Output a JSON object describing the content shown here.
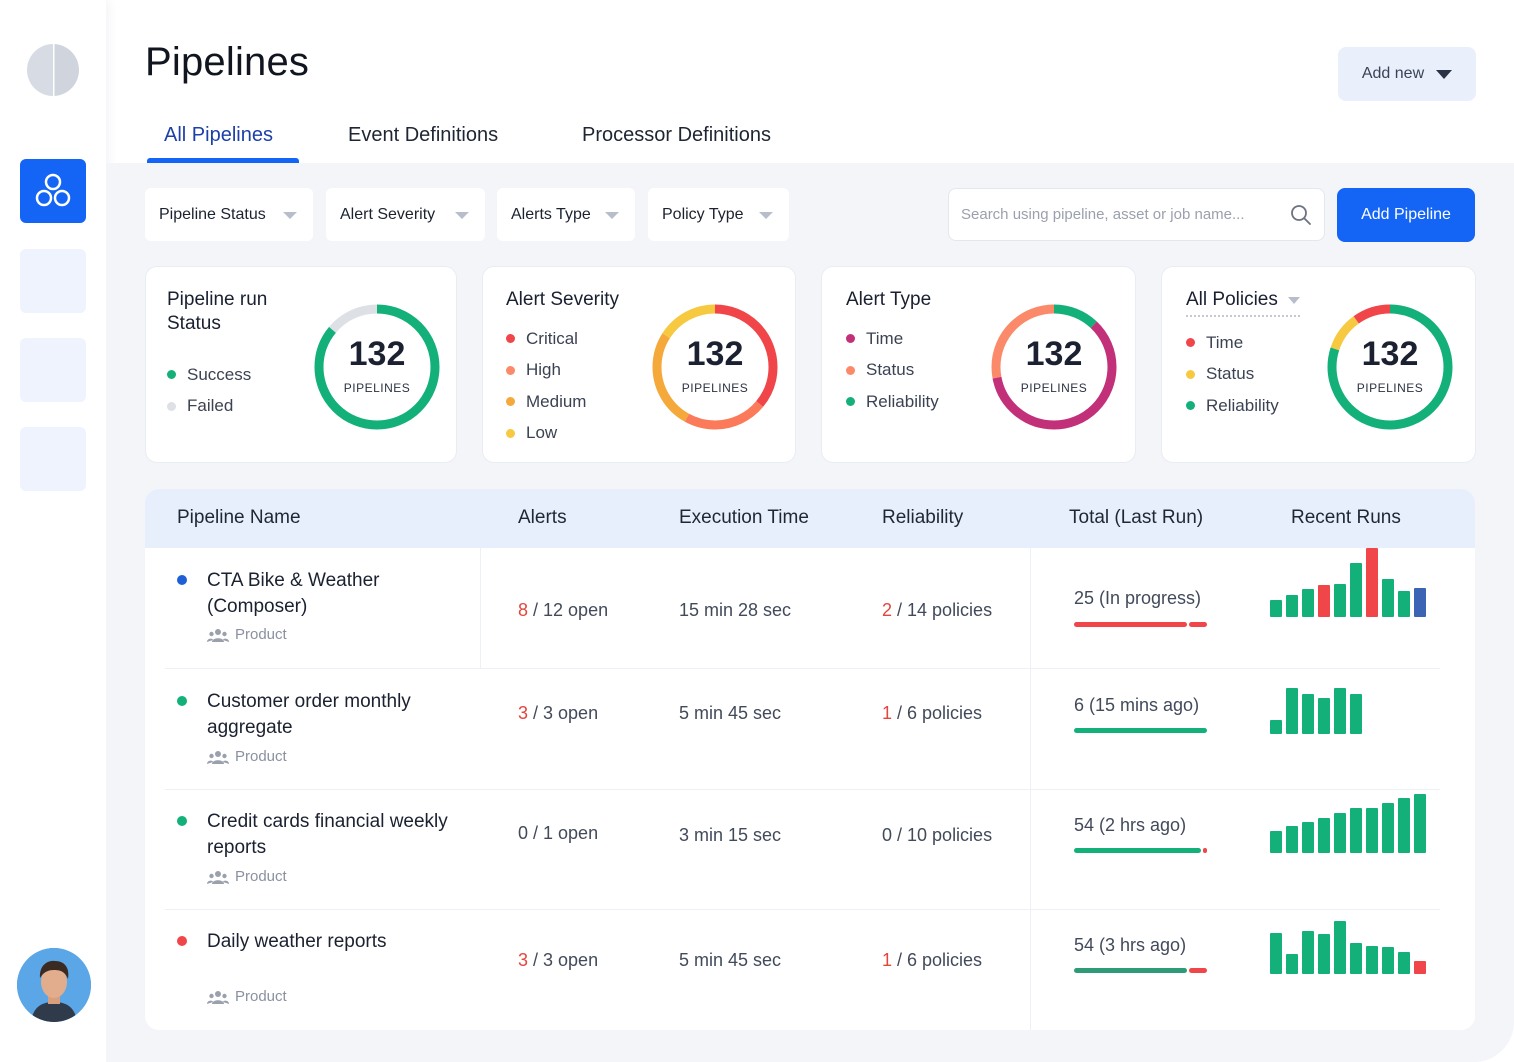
{
  "page": {
    "title": "Pipelines",
    "add_new_label": "Add new"
  },
  "tabs": [
    {
      "label": "All Pipelines",
      "active": true
    },
    {
      "label": "Event Definitions",
      "active": false
    },
    {
      "label": "Processor Definitions",
      "active": false
    }
  ],
  "filters": [
    "Pipeline Status",
    "Alert Severity",
    "Alerts Type",
    "Policy Type"
  ],
  "search": {
    "placeholder": "Search using pipeline, asset or job name..."
  },
  "add_pipeline_label": "Add Pipeline",
  "cards": [
    {
      "title": "Pipeline run Status",
      "value": "132",
      "unit": "PIPELINES",
      "legend": [
        {
          "label": "Success",
          "color": "#14b07a"
        },
        {
          "label": "Failed",
          "color": "#dde0e5"
        }
      ],
      "segments": [
        {
          "color": "#14b07a",
          "fraction": 0.86
        },
        {
          "color": "#dde0e5",
          "fraction": 0.14
        }
      ]
    },
    {
      "title": "Alert Severity",
      "value": "132",
      "unit": "PIPELINES",
      "legend": [
        {
          "label": "Critical",
          "color": "#f0464a"
        },
        {
          "label": "High",
          "color": "#fb8a6a"
        },
        {
          "label": "Medium",
          "color": "#f4a93a"
        },
        {
          "label": "Low",
          "color": "#f6c941"
        }
      ],
      "segments": [
        {
          "color": "#f0464a",
          "fraction": 0.36
        },
        {
          "color": "#fb7a5a",
          "fraction": 0.22
        },
        {
          "color": "#f4a93a",
          "fraction": 0.26
        },
        {
          "color": "#f6c941",
          "fraction": 0.16
        }
      ]
    },
    {
      "title": "Alert Type",
      "value": "132",
      "unit": "PIPELINES",
      "legend": [
        {
          "label": "Time",
          "color": "#c2307a"
        },
        {
          "label": "Status",
          "color": "#fb8a6a"
        },
        {
          "label": "Reliability",
          "color": "#14b07a"
        }
      ],
      "segments": [
        {
          "color": "#14b07a",
          "fraction": 0.12
        },
        {
          "color": "#c2307a",
          "fraction": 0.6
        },
        {
          "color": "#fb8a6a",
          "fraction": 0.28
        }
      ]
    },
    {
      "title": "All Policies",
      "value": "132",
      "unit": "PIPELINES",
      "legend": [
        {
          "label": "Time",
          "color": "#f0464a"
        },
        {
          "label": "Status",
          "color": "#f6c941"
        },
        {
          "label": "Reliability",
          "color": "#14b07a"
        }
      ],
      "segments": [
        {
          "color": "#14b07a",
          "fraction": 0.8
        },
        {
          "color": "#f6c941",
          "fraction": 0.1
        },
        {
          "color": "#f0464a",
          "fraction": 0.1
        }
      ]
    }
  ],
  "table": {
    "headers": [
      "Pipeline Name",
      "Alerts",
      "Execution Time",
      "Reliability",
      "Total (Last Run)",
      "Recent Runs"
    ],
    "rows": [
      {
        "name": "CTA Bike & Weather (Composer)",
        "status_color": "#1f5fd6",
        "owner": "Product",
        "alerts_count": "8",
        "alerts_rest": " / 12 open",
        "alerts_highlight": true,
        "execution": "15 min 28 sec",
        "policies_count": "2",
        "policies_rest": " / 14 policies",
        "policies_highlight": true,
        "total": "25 (In progress)",
        "progress": [
          {
            "color": "#f0464a",
            "fraction": 0.86
          },
          {
            "color": "#f0464a",
            "fraction": 0.14
          }
        ],
        "runs": [
          {
            "h": 0.25,
            "color": "#14b07a"
          },
          {
            "h": 0.32,
            "color": "#14b07a"
          },
          {
            "h": 0.4,
            "color": "#14b07a"
          },
          {
            "h": 0.47,
            "color": "#f0464a"
          },
          {
            "h": 0.48,
            "color": "#14b07a"
          },
          {
            "h": 0.78,
            "color": "#14b07a"
          },
          {
            "h": 1.0,
            "color": "#f0464a"
          },
          {
            "h": 0.55,
            "color": "#14b07a"
          },
          {
            "h": 0.38,
            "color": "#14b07a"
          },
          {
            "h": 0.42,
            "color": "#3c64b4"
          }
        ]
      },
      {
        "name": "Customer order monthly aggregate",
        "status_color": "#14b07a",
        "owner": "Product",
        "alerts_count": "3",
        "alerts_rest": " / 3 open",
        "alerts_highlight": true,
        "execution": "5 min 45 sec",
        "policies_count": "1",
        "policies_rest": " / 6 policies",
        "policies_highlight": true,
        "total": "6 (15 mins ago)",
        "progress": [
          {
            "color": "#14b07a",
            "fraction": 1.0
          }
        ],
        "runs": [
          {
            "h": 0.3,
            "color": "#14b07a"
          },
          {
            "h": 1.0,
            "color": "#14b07a"
          },
          {
            "h": 0.87,
            "color": "#14b07a"
          },
          {
            "h": 0.78,
            "color": "#14b07a"
          },
          {
            "h": 1.0,
            "color": "#14b07a"
          },
          {
            "h": 0.87,
            "color": "#14b07a"
          }
        ]
      },
      {
        "name": "Credit cards financial weekly reports",
        "status_color": "#14b07a",
        "owner": "Product",
        "alerts_count": "0",
        "alerts_rest": " / 1 open",
        "alerts_highlight": false,
        "execution": "3 min 15 sec",
        "policies_count": "0",
        "policies_rest": " / 10 policies",
        "policies_highlight": false,
        "total": "54 (2 hrs ago)",
        "progress": [
          {
            "color": "#14b07a",
            "fraction": 0.97
          },
          {
            "color": "#f0464a",
            "fraction": 0.03
          }
        ],
        "runs": [
          {
            "h": 0.38,
            "color": "#14b07a"
          },
          {
            "h": 0.45,
            "color": "#14b07a"
          },
          {
            "h": 0.52,
            "color": "#14b07a"
          },
          {
            "h": 0.6,
            "color": "#14b07a"
          },
          {
            "h": 0.67,
            "color": "#14b07a"
          },
          {
            "h": 0.77,
            "color": "#14b07a"
          },
          {
            "h": 0.77,
            "color": "#14b07a"
          },
          {
            "h": 0.85,
            "color": "#14b07a"
          },
          {
            "h": 0.93,
            "color": "#14b07a"
          },
          {
            "h": 1.0,
            "color": "#14b07a"
          }
        ]
      },
      {
        "name": "Daily weather reports",
        "status_color": "#f0464a",
        "owner": "Product",
        "alerts_count": "3",
        "alerts_rest": " / 3 open",
        "alerts_highlight": true,
        "execution": "5 min 45 sec",
        "policies_count": "1",
        "policies_rest": " / 6 policies",
        "policies_highlight": true,
        "total": "54 (3 hrs ago)",
        "progress": [
          {
            "color": "#2f9a78",
            "fraction": 0.86
          },
          {
            "color": "#f0464a",
            "fraction": 0.14
          }
        ],
        "runs": [
          {
            "h": 0.78,
            "color": "#14b07a"
          },
          {
            "h": 0.38,
            "color": "#14b07a"
          },
          {
            "h": 0.82,
            "color": "#14b07a"
          },
          {
            "h": 0.75,
            "color": "#14b07a"
          },
          {
            "h": 1.0,
            "color": "#14b07a"
          },
          {
            "h": 0.58,
            "color": "#14b07a"
          },
          {
            "h": 0.53,
            "color": "#14b07a"
          },
          {
            "h": 0.5,
            "color": "#14b07a"
          },
          {
            "h": 0.42,
            "color": "#14b07a"
          },
          {
            "h": 0.25,
            "color": "#f0464a"
          }
        ]
      }
    ]
  }
}
